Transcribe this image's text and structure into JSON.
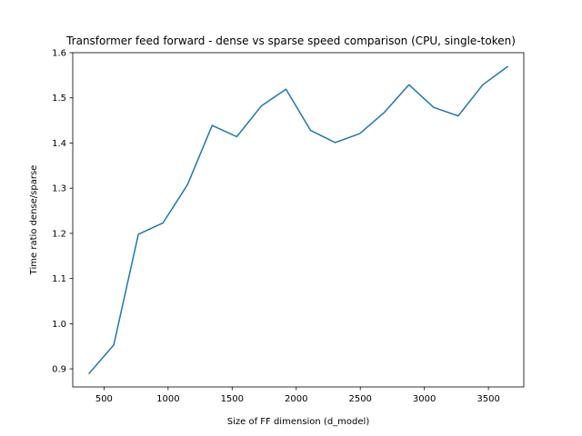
{
  "chart_data": {
    "type": "line",
    "title": "Transformer feed forward - dense vs sparse speed comparison (CPU, single-token)",
    "xlabel": "Size of FF dimension (d_model)",
    "ylabel": "Time ratio dense/sparse",
    "xlim": [
      256,
      3776
    ],
    "ylim": [
      0.86,
      1.6
    ],
    "xticks": [
      500,
      1000,
      1500,
      2000,
      2500,
      3000,
      3500
    ],
    "yticks": [
      0.9,
      1.0,
      1.1,
      1.2,
      1.3,
      1.4,
      1.5,
      1.6
    ],
    "grid": false,
    "series": [
      {
        "color": "#1f77b4",
        "x": [
          384,
          576,
          768,
          960,
          1152,
          1344,
          1536,
          1728,
          1920,
          2112,
          2304,
          2496,
          2688,
          2880,
          3072,
          3264,
          3456,
          3648
        ],
        "y": [
          0.89,
          0.953,
          1.198,
          1.223,
          1.308,
          1.439,
          1.414,
          1.482,
          1.519,
          1.428,
          1.401,
          1.421,
          1.468,
          1.529,
          1.479,
          1.46,
          1.529,
          1.569
        ]
      }
    ]
  }
}
